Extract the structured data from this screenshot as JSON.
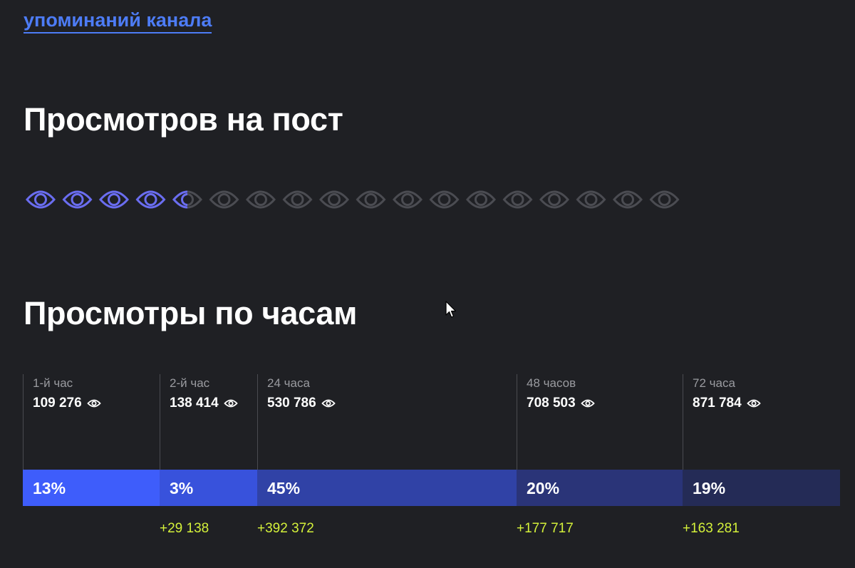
{
  "link": {
    "text": "упоминаний канала"
  },
  "sections": {
    "views_per_post": {
      "title": "Просмотров на пост"
    },
    "views_hourly": {
      "title": "Просмотры по часам"
    }
  },
  "eye_rating": {
    "total": 18,
    "filled": 4.5,
    "active_color": "#6a6df0",
    "inactive_color": "#4b4c52"
  },
  "colors": {
    "link": "#4d7cf6",
    "delta": "#d4f13a"
  },
  "timeline": [
    {
      "label": "1-й час",
      "value": "109 276",
      "pct": "13%",
      "delta": "",
      "color": "#3e5dfb"
    },
    {
      "label": "2-й час",
      "value": "138 414",
      "pct": "3%",
      "delta": "+29 138",
      "color": "#3852dc"
    },
    {
      "label": "24 часа",
      "value": "530 786",
      "pct": "45%",
      "delta": "+392 372",
      "color": "#3042a6"
    },
    {
      "label": "48 часов",
      "value": "708 503",
      "pct": "20%",
      "delta": "+177 717",
      "color": "#2a3478"
    },
    {
      "label": "72 часа",
      "value": "871 784",
      "pct": "19%",
      "delta": "+163 281",
      "color": "#242b56"
    }
  ]
}
